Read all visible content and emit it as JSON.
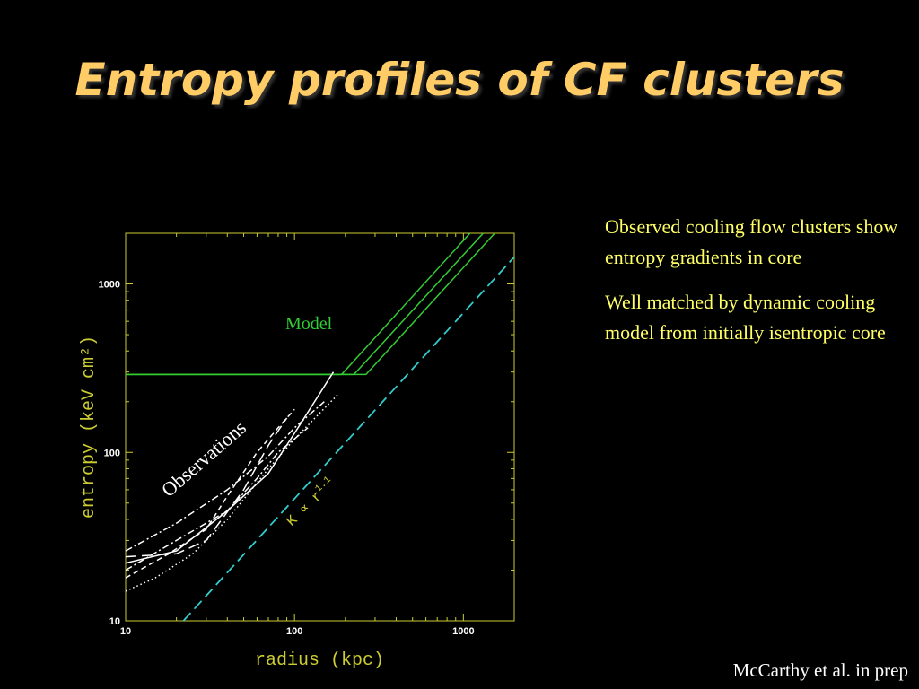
{
  "slide": {
    "title": "Entropy profiles of CF clusters",
    "notes": [
      "Observed cooling flow clusters show entropy gradients in core",
      "Well matched by dynamic cooling model from initially isentropic core"
    ],
    "credit": "McCarthy et al. in prep"
  },
  "chart_data": {
    "type": "line",
    "xlabel": "radius (kpc)",
    "ylabel": "entropy (keV cm²)",
    "xscale": "log",
    "yscale": "log",
    "xlim": [
      10,
      2000
    ],
    "ylim": [
      10,
      2000
    ],
    "xticks": [
      "10",
      "100",
      "1000"
    ],
    "yticks": [
      "10",
      "100",
      "1000"
    ],
    "annotations": {
      "model": "Model",
      "observations": "Observations",
      "slope": "K ∝ r"
    },
    "slope_exponent": "1.1",
    "colors": {
      "model": "#33cc33",
      "scaling": "#33cccc",
      "observations": "#ffffff",
      "axes": "#cccc33",
      "text": "#ffff66"
    },
    "series": [
      {
        "group": "Model",
        "dash": "solid",
        "x": [
          10,
          190,
          2000
        ],
        "y": [
          290,
          290,
          3890
        ]
      },
      {
        "group": "Model",
        "dash": "solid",
        "x": [
          10,
          225,
          2000
        ],
        "y": [
          290,
          290,
          3180
        ]
      },
      {
        "group": "Model",
        "dash": "solid",
        "x": [
          10,
          265,
          2000
        ],
        "y": [
          290,
          290,
          2680
        ]
      },
      {
        "group": "scaling",
        "dash": "long-dash",
        "x": [
          22,
          2000
        ],
        "y": [
          10,
          1445
        ]
      },
      {
        "group": "Observations",
        "dash": "dash-dot",
        "x": [
          10,
          20,
          40,
          70,
          100,
          150
        ],
        "y": [
          26,
          38,
          60,
          95,
          140,
          200
        ]
      },
      {
        "group": "Observations",
        "dash": "solid",
        "x": [
          10,
          20,
          40,
          70,
          100,
          170
        ],
        "y": [
          22,
          26,
          45,
          75,
          130,
          300
        ]
      },
      {
        "group": "Observations",
        "dash": "dotted",
        "x": [
          10,
          15,
          25,
          40,
          70,
          100,
          180
        ],
        "y": [
          15,
          18,
          25,
          40,
          80,
          120,
          220
        ]
      },
      {
        "group": "Observations",
        "dash": "dashed",
        "x": [
          10,
          18,
          30,
          40,
          60,
          80,
          100
        ],
        "y": [
          18,
          25,
          35,
          55,
          100,
          140,
          180
        ]
      },
      {
        "group": "Observations",
        "dash": "long-dash",
        "x": [
          10,
          20,
          30,
          50,
          70,
          90
        ],
        "y": [
          24,
          25,
          30,
          60,
          110,
          160
        ]
      },
      {
        "group": "Observations",
        "dash": "dash-dot",
        "x": [
          10,
          20,
          40,
          60,
          80,
          120
        ],
        "y": [
          20,
          30,
          45,
          70,
          100,
          140
        ]
      }
    ]
  }
}
